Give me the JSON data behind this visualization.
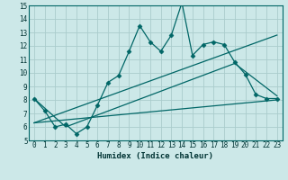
{
  "xlabel": "Humidex (Indice chaleur)",
  "ylabel": "",
  "xlim": [
    -0.5,
    23.5
  ],
  "ylim": [
    5,
    15
  ],
  "xticks": [
    0,
    1,
    2,
    3,
    4,
    5,
    6,
    7,
    8,
    9,
    10,
    11,
    12,
    13,
    14,
    15,
    16,
    17,
    18,
    19,
    20,
    21,
    22,
    23
  ],
  "yticks": [
    5,
    6,
    7,
    8,
    9,
    10,
    11,
    12,
    13,
    14,
    15
  ],
  "bg_color": "#cce8e8",
  "grid_color": "#aacccc",
  "line_color": "#006666",
  "line1_x": [
    0,
    1,
    2,
    3,
    4,
    5,
    6,
    7,
    8,
    9,
    10,
    11,
    12,
    13,
    14,
    15,
    16,
    17,
    18,
    19,
    20,
    21,
    22,
    23
  ],
  "line1_y": [
    8.1,
    7.2,
    6.0,
    6.2,
    5.5,
    6.0,
    7.6,
    9.3,
    9.8,
    11.6,
    13.5,
    12.3,
    11.6,
    12.8,
    15.2,
    11.3,
    12.1,
    12.3,
    12.1,
    10.8,
    9.9,
    8.4,
    8.1,
    8.1
  ],
  "line2_x": [
    0,
    23
  ],
  "line2_y": [
    6.3,
    12.8
  ],
  "line3_x": [
    0,
    23
  ],
  "line3_y": [
    6.3,
    8.0
  ],
  "line4_x": [
    0,
    3,
    19,
    23
  ],
  "line4_y": [
    8.1,
    6.0,
    10.7,
    8.3
  ],
  "marker": "D",
  "markersize": 2.5,
  "line_width": 0.9
}
